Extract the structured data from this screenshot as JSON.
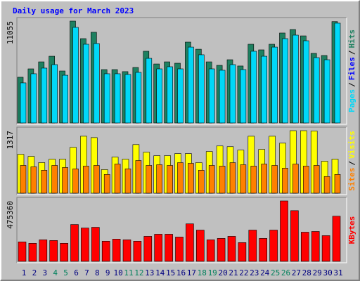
{
  "chart_data": [
    {
      "type": "bar",
      "title": "Daily usage for March 2023",
      "title_color": "#0000ff",
      "ylim": [
        0,
        11055
      ],
      "legend_separator": "/",
      "extra_legend": {
        "name": "Files",
        "color": "#0000ff"
      },
      "series": [
        {
          "name": "Hits",
          "color": "#1e8060",
          "values": [
            4960,
            5870,
            6630,
            7240,
            5640,
            11055,
            9150,
            9840,
            5790,
            5790,
            5570,
            6020,
            7780,
            6400,
            6630,
            6480,
            8770,
            8000,
            6630,
            6250,
            6860,
            6180,
            8540,
            7930,
            8540,
            9760,
            10140,
            9450,
            7550,
            7320,
            11000
          ]
        },
        {
          "name": "Pages",
          "color": "#00d8f8",
          "values": [
            4350,
            5340,
            5950,
            6330,
            5180,
            10370,
            8540,
            8620,
            5340,
            5340,
            5260,
            5490,
            7010,
            5870,
            6100,
            5870,
            8230,
            7400,
            5870,
            5720,
            6330,
            5790,
            7780,
            7240,
            8230,
            9150,
            9530,
            8920,
            7090,
            6860,
            10830
          ]
        }
      ]
    },
    {
      "type": "bar",
      "ylim": [
        0,
        1317
      ],
      "legend_separator": "/",
      "series": [
        {
          "name": "Visits",
          "color": "#ffff00",
          "values": [
            819,
            775,
            644,
            717,
            717,
            966,
            1200,
            1171,
            497,
            761,
            717,
            1024,
            863,
            790,
            790,
            834,
            834,
            644,
            878,
            995,
            980,
            907,
            1200,
            922,
            1200,
            1054,
            1317,
            1317,
            1310,
            673,
            717
          ]
        },
        {
          "name": "Sites",
          "color": "#ff8000",
          "values": [
            585,
            556,
            483,
            585,
            541,
            512,
            571,
            585,
            395,
            614,
            512,
            688,
            585,
            600,
            585,
            644,
            629,
            483,
            585,
            571,
            644,
            600,
            571,
            614,
            585,
            527,
            614,
            571,
            585,
            351,
            395
          ]
        }
      ]
    },
    {
      "type": "bar",
      "ylim": [
        0,
        475360
      ],
      "categories": [
        "1",
        "2",
        "3",
        "4",
        "5",
        "6",
        "7",
        "8",
        "9",
        "10",
        "11",
        "12",
        "13",
        "14",
        "15",
        "16",
        "17",
        "18",
        "19",
        "20",
        "21",
        "22",
        "23",
        "24",
        "25",
        "26",
        "27",
        "28",
        "29",
        "30",
        "31"
      ],
      "category_colors": [
        "#000080",
        "#000080",
        "#000080",
        "#00805c",
        "#00805c",
        "#000080",
        "#000080",
        "#000080",
        "#000080",
        "#000080",
        "#00805c",
        "#00805c",
        "#000080",
        "#000080",
        "#000080",
        "#000080",
        "#000080",
        "#00805c",
        "#00805c",
        "#000080",
        "#000080",
        "#000080",
        "#000080",
        "#000080",
        "#00805c",
        "#00805c",
        "#000080",
        "#000080",
        "#000080",
        "#000080",
        "#000080"
      ],
      "series": [
        {
          "name": "KBytes",
          "color": "#ff0000",
          "values": [
            152990,
            142060,
            169380,
            163920,
            142060,
            289590,
            262270,
            267740,
            158460,
            174850,
            169380,
            158460,
            196700,
            213100,
            213100,
            191240,
            295060,
            245880,
            169380,
            180310,
            196700,
            147530,
            245880,
            180310,
            245880,
            475360,
            398870,
            229490,
            234950,
            202170,
            355160
          ]
        }
      ]
    }
  ]
}
